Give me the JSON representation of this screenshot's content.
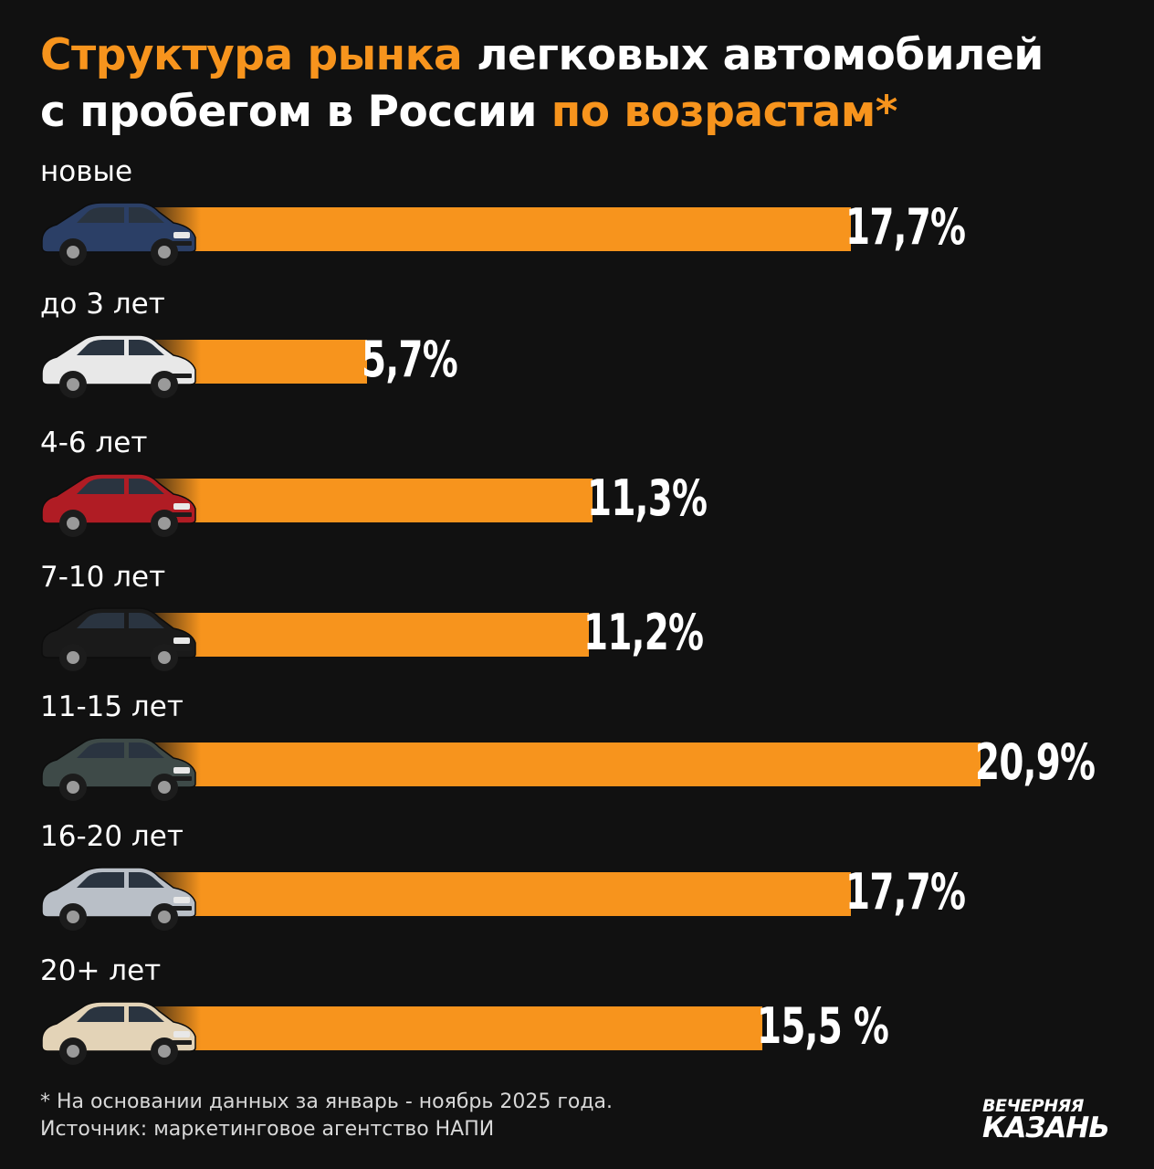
{
  "title": {
    "parts": [
      {
        "text": "Структура рынка",
        "accent": true
      },
      {
        "text": " легковых автомобилей",
        "accent": false
      },
      {
        "text": "с пробегом в России ",
        "accent": false
      },
      {
        "text": "по возрастам*",
        "accent": true
      }
    ]
  },
  "colors": {
    "accent": "#f7941d",
    "background": "#111111",
    "text": "#ffffff"
  },
  "chart_data": {
    "type": "bar",
    "orientation": "horizontal",
    "categories": [
      "новые",
      "до 3 лет",
      "4-6 лет",
      "7-10 лет",
      "11-15 лет",
      "16-20 лет",
      "20+ лет"
    ],
    "values": [
      17.7,
      5.7,
      11.3,
      11.2,
      20.9,
      17.7,
      15.5
    ],
    "value_labels": [
      "17,7%",
      "5,7%",
      "11,3%",
      "11,2%",
      "20,9%",
      "17,7%",
      "15,5 %"
    ],
    "unit": "%",
    "car_icons": [
      "sedan-new-icon",
      "crossover-icon",
      "red-sedan-icon",
      "black-sedan-icon",
      "green-hatchback-icon",
      "silver-hatchback-icon",
      "old-sedan-icon"
    ],
    "car_colors": [
      "#2b3f66",
      "#e8e8e8",
      "#b01c24",
      "#1a1a1a",
      "#3e4a48",
      "#b9bfc7",
      "#e3d3b7"
    ]
  },
  "footnote": {
    "line1": "* На основании данных за январь - ноябрь 2025 года.",
    "line2": "Источник: маркетинговое агентство НАПИ"
  },
  "logo": {
    "line1": "ВЕЧЕРНЯЯ",
    "line2": "КАЗАНЬ"
  }
}
